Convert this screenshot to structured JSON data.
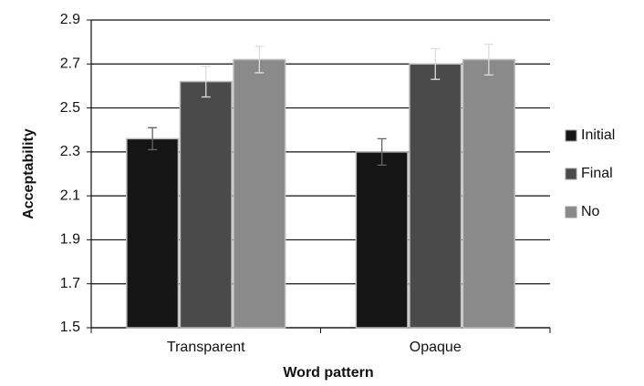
{
  "chart_data": {
    "type": "bar",
    "xlabel": "Word pattern",
    "ylabel": "Acceptability",
    "categories": [
      "Transparent",
      "Opaque"
    ],
    "series": [
      {
        "name": "Initial",
        "color": "#151515",
        "values": [
          2.36,
          2.3
        ],
        "errors": [
          0.05,
          0.06
        ]
      },
      {
        "name": "Final",
        "color": "#4a4a4a",
        "values": [
          2.62,
          2.7
        ],
        "errors": [
          0.07,
          0.07
        ]
      },
      {
        "name": "No",
        "color": "#8a8a8a",
        "values": [
          2.72,
          2.72
        ],
        "errors": [
          0.06,
          0.07
        ]
      }
    ],
    "ylim": [
      1.5,
      2.9
    ],
    "yticks": [
      1.5,
      1.7,
      1.9,
      2.1,
      2.3,
      2.5,
      2.7,
      2.9
    ],
    "grid": true,
    "legend": "right"
  }
}
